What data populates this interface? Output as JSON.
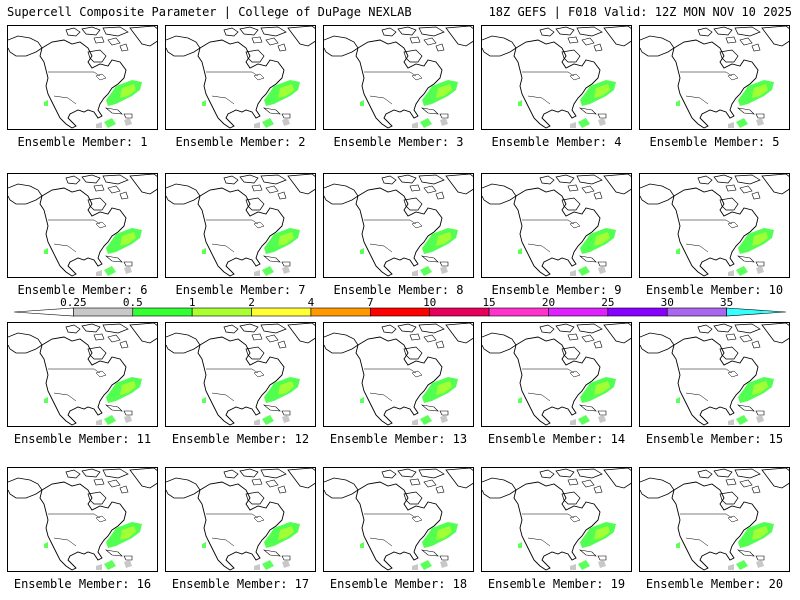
{
  "header": {
    "title": "Supercell Composite Parameter | College of DuPage NEXLAB",
    "run_info": "18Z GEFS | F018 Valid: 12Z MON NOV 10 2025"
  },
  "members": [
    {
      "label": "Ensemble Member: 1"
    },
    {
      "label": "Ensemble Member: 2"
    },
    {
      "label": "Ensemble Member: 3"
    },
    {
      "label": "Ensemble Member: 4"
    },
    {
      "label": "Ensemble Member: 5"
    },
    {
      "label": "Ensemble Member: 6"
    },
    {
      "label": "Ensemble Member: 7"
    },
    {
      "label": "Ensemble Member: 8"
    },
    {
      "label": "Ensemble Member: 9"
    },
    {
      "label": "Ensemble Member: 10"
    },
    {
      "label": "Ensemble Member: 11"
    },
    {
      "label": "Ensemble Member: 12"
    },
    {
      "label": "Ensemble Member: 13"
    },
    {
      "label": "Ensemble Member: 14"
    },
    {
      "label": "Ensemble Member: 15"
    },
    {
      "label": "Ensemble Member: 16"
    },
    {
      "label": "Ensemble Member: 17"
    },
    {
      "label": "Ensemble Member: 18"
    },
    {
      "label": "Ensemble Member: 19"
    },
    {
      "label": "Ensemble Member: 20"
    }
  ],
  "colorbar": {
    "ticks": [
      "0.25",
      "0.5",
      "1",
      "2",
      "4",
      "7",
      "10",
      "15",
      "20",
      "25",
      "30",
      "35"
    ],
    "colors": [
      "#ffffff",
      "#c8c8c8",
      "#33ff33",
      "#aaff33",
      "#ffff33",
      "#ff9900",
      "#ff0000",
      "#e6005c",
      "#ff33cc",
      "#dd22ff",
      "#8800ff",
      "#aa66ee",
      "#33ffff"
    ]
  },
  "map_colors": {
    "outline": "#000000",
    "low": "#c8c8c8",
    "mid": "#33ff33",
    "high": "#aaff33"
  }
}
